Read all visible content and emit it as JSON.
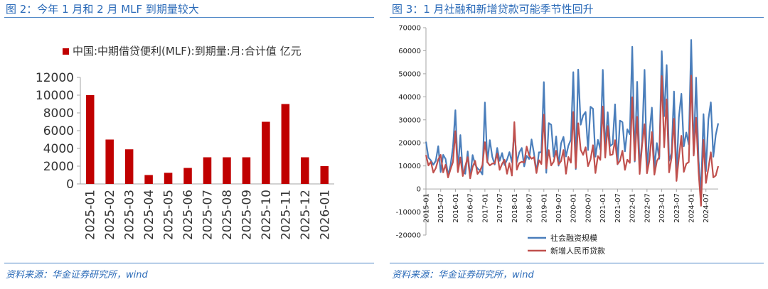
{
  "left_panel": {
    "title": "图 2：今年 1 月和 2 月 MLF 到期量较大",
    "source": "资料来源：华金证券研究所，wind"
  },
  "right_panel": {
    "title": "图 3：1 月社融和新增贷款可能季节性回升",
    "source": "资料来源：华金证券研究所，wind"
  },
  "colors": {
    "red": "#c00000",
    "blue": "#4a7ebb",
    "dark_red": "#c0504d",
    "header_blue": "#2a6ab8"
  },
  "chart_data": [
    {
      "type": "bar",
      "legend": "中国:中期借贷便利(MLF):到期量:月:合计值 亿元",
      "legend_position": "top",
      "categories": [
        "2025-01",
        "2025-02",
        "2025-03",
        "2025-04",
        "2025-05",
        "2025-06",
        "2025-07",
        "2025-08",
        "2025-09",
        "2025-10",
        "2025-11",
        "2025-12",
        "2026-01"
      ],
      "values": [
        10000,
        5000,
        3900,
        1000,
        1250,
        1800,
        3000,
        3000,
        3000,
        7000,
        9000,
        3000,
        2000
      ],
      "ylim": [
        0,
        12000
      ],
      "yticks": [
        "0",
        "2000",
        "4000",
        "6000",
        "8000",
        "10000",
        "12000"
      ],
      "grid": false
    },
    {
      "type": "line",
      "legend_position": "bottom",
      "xticks": [
        "2015-01",
        "2015-07",
        "2016-01",
        "2016-07",
        "2017-01",
        "2017-07",
        "2018-01",
        "2018-07",
        "2019-01",
        "2019-07",
        "2020-01",
        "2020-07",
        "2021-01",
        "2021-07",
        "2022-01",
        "2022-07",
        "2023-01",
        "2023-07",
        "2024-01",
        "2024-07"
      ],
      "yticks": [
        "-20000",
        "-10000",
        "0",
        "10000",
        "20000",
        "30000",
        "40000",
        "50000",
        "60000",
        "70000"
      ],
      "ylim": [
        -20000,
        70000
      ],
      "grid": false,
      "series": [
        {
          "name": "社会融资规模",
          "color": "#4a7ebb",
          "values": [
            20500,
            13600,
            12400,
            10500,
            12200,
            18600,
            7300,
            14800,
            13000,
            6000,
            10200,
            18200,
            34200,
            7800,
            23400,
            7500,
            6600,
            16300,
            4900,
            14700,
            10600,
            8900,
            8000,
            6300,
            37500,
            11500,
            21200,
            13900,
            10600,
            17800,
            12200,
            15600,
            10400,
            12700,
            16000,
            11600,
            25500,
            11700,
            15800,
            17800,
            9800,
            14400,
            13000,
            21500,
            15300,
            7300,
            15900,
            15900,
            46400,
            7000,
            28600,
            27900,
            14000,
            22800,
            10100,
            19800,
            22600,
            14100,
            18800,
            21400,
            50700,
            8600,
            51800,
            27900,
            31900,
            33400,
            16900,
            35700,
            34800,
            14000,
            21300,
            17200,
            51700,
            17200,
            33300,
            18600,
            19500,
            36700,
            10700,
            29700,
            29000,
            16300,
            25900,
            23700,
            61700,
            11900,
            46500,
            9100,
            20500,
            51700,
            7600,
            24300,
            35300,
            9100,
            19900,
            13100,
            59800,
            31600,
            53800,
            12200,
            15600,
            42300,
            5300,
            31200,
            41300,
            18500,
            24500,
            19300,
            64700,
            15000,
            48300,
            12400,
            -1600,
            32500,
            7700,
            30300,
            37600,
            14000,
            23400,
            28500
          ]
        },
        {
          "name": "新增人民币贷款",
          "color": "#c0504d",
          "values": [
            14700,
            10200,
            11800,
            7100,
            9000,
            12800,
            14800,
            7200,
            10500,
            5000,
            8500,
            11700,
            25100,
            7300,
            13700,
            5600,
            9900,
            13800,
            4600,
            9500,
            12200,
            6500,
            7900,
            10400,
            20300,
            11700,
            10200,
            11000,
            11100,
            15400,
            8300,
            10900,
            12700,
            6600,
            11200,
            5800,
            29000,
            8400,
            11200,
            11800,
            11500,
            18400,
            14500,
            13100,
            13800,
            6900,
            12500,
            10800,
            32300,
            8900,
            16900,
            10200,
            11800,
            16600,
            10600,
            12100,
            16900,
            6600,
            13900,
            11400,
            33400,
            9100,
            28500,
            17000,
            14800,
            18100,
            9900,
            12800,
            19000,
            6900,
            14300,
            12600,
            35800,
            13600,
            27300,
            14700,
            15000,
            21200,
            10800,
            12200,
            16600,
            8300,
            12700,
            11300,
            39800,
            12300,
            31300,
            6500,
            18900,
            28100,
            6800,
            12500,
            24700,
            6200,
            12100,
            14000,
            49000,
            18100,
            38900,
            7200,
            13600,
            30500,
            3500,
            13600,
            23100,
            7400,
            10900,
            11700,
            49200,
            14500,
            30900,
            7300,
            -7300,
            21300,
            2600,
            9000,
            15900,
            5000,
            5800,
            9900
          ]
        }
      ]
    }
  ]
}
